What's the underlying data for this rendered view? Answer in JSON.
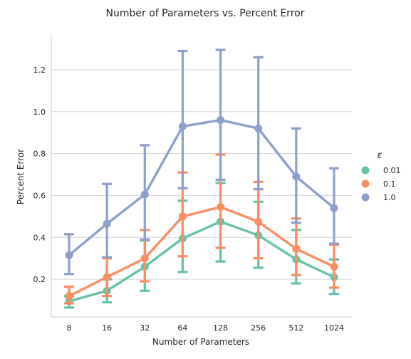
{
  "chart_data": {
    "type": "line",
    "title": "Number of Parameters vs. Percent Error",
    "xlabel": "Number of Parameters",
    "ylabel": "Percent Error",
    "categories": [
      "8",
      "16",
      "32",
      "64",
      "128",
      "256",
      "512",
      "1024"
    ],
    "ylim": [
      0.02,
      1.37
    ],
    "yticks": [
      0.2,
      0.4,
      0.6,
      0.8,
      1.0,
      1.2
    ],
    "ytick_labels": [
      "0.2",
      "0.4",
      "0.6",
      "0.8",
      "1.0",
      "1.2"
    ],
    "grid": "horizontal",
    "legend_title": "ε",
    "legend_position": "right",
    "series": [
      {
        "name": "0.01",
        "color": "#66c2a5",
        "values": [
          0.095,
          0.145,
          0.26,
          0.395,
          0.475,
          0.41,
          0.295,
          0.21
        ],
        "err_low": [
          0.065,
          0.09,
          0.145,
          0.235,
          0.285,
          0.255,
          0.18,
          0.13
        ],
        "err_high": [
          0.12,
          0.2,
          0.385,
          0.575,
          0.66,
          0.57,
          0.435,
          0.295
        ]
      },
      {
        "name": "0.1",
        "color": "#fc8d62",
        "values": [
          0.12,
          0.21,
          0.3,
          0.5,
          0.545,
          0.475,
          0.345,
          0.26
        ],
        "err_low": [
          0.085,
          0.12,
          0.19,
          0.31,
          0.35,
          0.3,
          0.22,
          0.16
        ],
        "err_high": [
          0.165,
          0.3,
          0.435,
          0.71,
          0.795,
          0.665,
          0.49,
          0.365
        ]
      },
      {
        "name": "1.0",
        "color": "#8da0cb",
        "values": [
          0.315,
          0.465,
          0.605,
          0.93,
          0.96,
          0.92,
          0.69,
          0.54
        ],
        "err_low": [
          0.225,
          0.305,
          0.39,
          0.635,
          0.675,
          0.63,
          0.47,
          0.37
        ],
        "err_high": [
          0.415,
          0.655,
          0.84,
          1.29,
          1.295,
          1.26,
          0.92,
          0.73
        ]
      }
    ]
  }
}
